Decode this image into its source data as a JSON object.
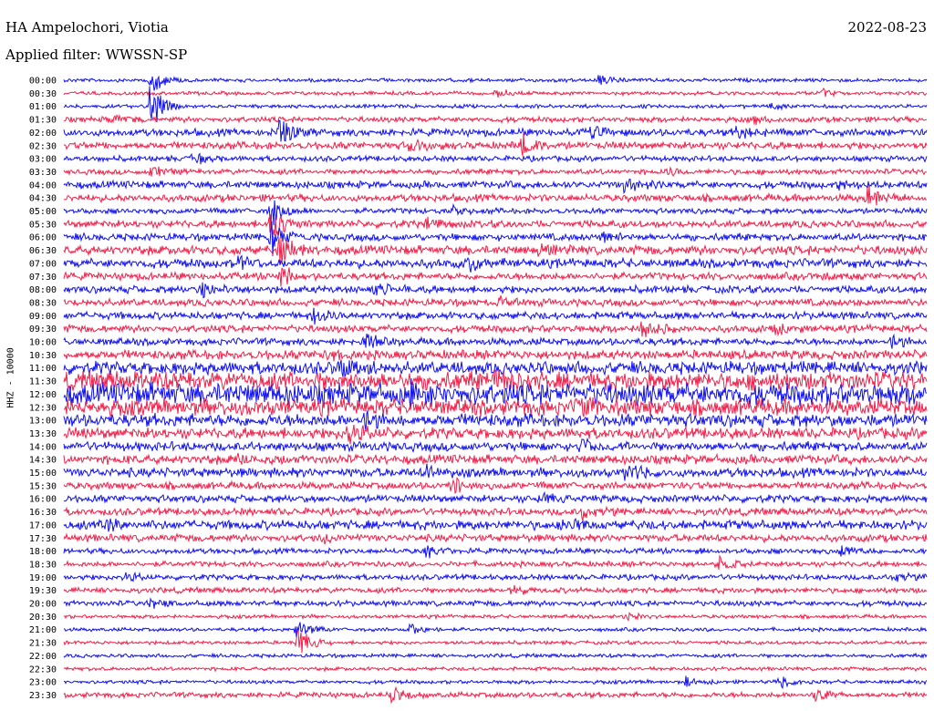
{
  "header": {
    "station": "HA Ampelochori, Viotia",
    "filter": "Applied filter: WWSSN-SP",
    "date": "2022-08-23"
  },
  "colors": {
    "even_trace": "#1010f0",
    "odd_trace": "#f0204a",
    "background": "#ffffff"
  },
  "chart_data": {
    "type": "line",
    "title": "",
    "ylabel": "HHZ - 10000",
    "trace_interval_minutes": 30,
    "grid": false,
    "rows": [
      {
        "label": "00:00",
        "amplitude": 2,
        "events": [
          {
            "at": 0.1,
            "size": 18
          },
          {
            "at": 0.62,
            "size": 8
          }
        ]
      },
      {
        "label": "00:30",
        "amplitude": 2,
        "events": [
          {
            "at": 0.5,
            "size": 7
          },
          {
            "at": 0.88,
            "size": 5
          }
        ]
      },
      {
        "label": "01:00",
        "amplitude": 2,
        "events": [
          {
            "at": 0.1,
            "size": 30
          },
          {
            "at": 0.82,
            "size": 5
          }
        ]
      },
      {
        "label": "01:30",
        "amplitude": 3,
        "events": [
          {
            "at": 0.05,
            "size": 6
          },
          {
            "at": 0.8,
            "size": 5
          }
        ]
      },
      {
        "label": "02:00",
        "amplitude": 4,
        "events": [
          {
            "at": 0.25,
            "size": 22
          },
          {
            "at": 0.61,
            "size": 8
          },
          {
            "at": 0.78,
            "size": 6
          }
        ]
      },
      {
        "label": "02:30",
        "amplitude": 4,
        "events": [
          {
            "at": 0.53,
            "size": 14
          },
          {
            "at": 0.4,
            "size": 8
          }
        ]
      },
      {
        "label": "03:00",
        "amplitude": 3,
        "events": [
          {
            "at": 0.15,
            "size": 6
          }
        ]
      },
      {
        "label": "03:30",
        "amplitude": 3,
        "events": [
          {
            "at": 0.1,
            "size": 7
          },
          {
            "at": 0.7,
            "size": 5
          }
        ]
      },
      {
        "label": "04:00",
        "amplitude": 4,
        "events": [
          {
            "at": 0.65,
            "size": 10
          },
          {
            "at": 0.9,
            "size": 6
          }
        ]
      },
      {
        "label": "04:30",
        "amplitude": 4,
        "events": [
          {
            "at": 0.93,
            "size": 14
          }
        ]
      },
      {
        "label": "05:00",
        "amplitude": 3,
        "events": [
          {
            "at": 0.24,
            "size": 20
          },
          {
            "at": 0.45,
            "size": 5
          }
        ]
      },
      {
        "label": "05:30",
        "amplitude": 4,
        "events": [
          {
            "at": 0.24,
            "size": 26
          },
          {
            "at": 0.42,
            "size": 6
          }
        ]
      },
      {
        "label": "06:00",
        "amplitude": 4,
        "events": [
          {
            "at": 0.24,
            "size": 24
          },
          {
            "at": 0.62,
            "size": 6
          }
        ]
      },
      {
        "label": "06:30",
        "amplitude": 5,
        "events": [
          {
            "at": 0.25,
            "size": 22
          },
          {
            "at": 0.55,
            "size": 6
          }
        ]
      },
      {
        "label": "07:00",
        "amplitude": 5,
        "events": [
          {
            "at": 0.2,
            "size": 12
          },
          {
            "at": 0.47,
            "size": 8
          }
        ]
      },
      {
        "label": "07:30",
        "amplitude": 4,
        "events": [
          {
            "at": 0.25,
            "size": 16
          },
          {
            "at": 0.88,
            "size": 6
          }
        ]
      },
      {
        "label": "08:00",
        "amplitude": 4,
        "events": [
          {
            "at": 0.16,
            "size": 10
          },
          {
            "at": 0.36,
            "size": 8
          }
        ]
      },
      {
        "label": "08:30",
        "amplitude": 4,
        "events": [
          {
            "at": 0.5,
            "size": 6
          }
        ]
      },
      {
        "label": "09:00",
        "amplitude": 4,
        "events": [
          {
            "at": 0.29,
            "size": 12
          }
        ]
      },
      {
        "label": "09:30",
        "amplitude": 4,
        "events": [
          {
            "at": 0.67,
            "size": 14
          },
          {
            "at": 0.82,
            "size": 8
          }
        ]
      },
      {
        "label": "10:00",
        "amplitude": 4,
        "events": [
          {
            "at": 0.35,
            "size": 8
          },
          {
            "at": 0.96,
            "size": 8
          }
        ]
      },
      {
        "label": "10:30",
        "amplitude": 5,
        "events": [
          {
            "at": 0.3,
            "size": 8
          }
        ]
      },
      {
        "label": "11:00",
        "amplitude": 7,
        "events": [
          {
            "at": 0.32,
            "size": 10
          }
        ]
      },
      {
        "label": "11:30",
        "amplitude": 10,
        "events": [
          {
            "at": 0.5,
            "size": 10
          }
        ]
      },
      {
        "label": "12:00",
        "amplitude": 12,
        "events": [
          {
            "at": 0.4,
            "size": 10
          }
        ]
      },
      {
        "label": "12:30",
        "amplitude": 9,
        "events": [
          {
            "at": 0.6,
            "size": 10
          }
        ]
      },
      {
        "label": "13:00",
        "amplitude": 7,
        "events": [
          {
            "at": 0.35,
            "size": 10
          }
        ]
      },
      {
        "label": "13:30",
        "amplitude": 6,
        "events": [
          {
            "at": 0.33,
            "size": 14
          }
        ]
      },
      {
        "label": "14:00",
        "amplitude": 5,
        "events": [
          {
            "at": 0.6,
            "size": 8
          }
        ]
      },
      {
        "label": "14:30",
        "amplitude": 5,
        "events": [
          {
            "at": 0.2,
            "size": 6
          }
        ]
      },
      {
        "label": "15:00",
        "amplitude": 5,
        "events": [
          {
            "at": 0.65,
            "size": 14
          },
          {
            "at": 0.42,
            "size": 8
          }
        ]
      },
      {
        "label": "15:30",
        "amplitude": 4,
        "events": [
          {
            "at": 0.45,
            "size": 12
          }
        ]
      },
      {
        "label": "16:00",
        "amplitude": 4,
        "events": [
          {
            "at": 0.55,
            "size": 6
          }
        ]
      },
      {
        "label": "16:30",
        "amplitude": 4,
        "events": [
          {
            "at": 0.6,
            "size": 8
          }
        ]
      },
      {
        "label": "17:00",
        "amplitude": 5,
        "events": [
          {
            "at": 0.05,
            "size": 8
          },
          {
            "at": 0.58,
            "size": 8
          }
        ]
      },
      {
        "label": "17:30",
        "amplitude": 4,
        "events": [
          {
            "at": 0.3,
            "size": 6
          }
        ]
      },
      {
        "label": "18:00",
        "amplitude": 3,
        "events": [
          {
            "at": 0.42,
            "size": 8
          },
          {
            "at": 0.9,
            "size": 6
          }
        ]
      },
      {
        "label": "18:30",
        "amplitude": 3,
        "events": [
          {
            "at": 0.76,
            "size": 8
          }
        ]
      },
      {
        "label": "19:00",
        "amplitude": 3,
        "events": [
          {
            "at": 0.07,
            "size": 6
          },
          {
            "at": 0.96,
            "size": 6
          }
        ]
      },
      {
        "label": "19:30",
        "amplitude": 3,
        "events": [
          {
            "at": 0.52,
            "size": 6
          }
        ]
      },
      {
        "label": "20:00",
        "amplitude": 3,
        "events": [
          {
            "at": 0.1,
            "size": 6
          }
        ]
      },
      {
        "label": "20:30",
        "amplitude": 2,
        "events": [
          {
            "at": 0.65,
            "size": 6
          }
        ]
      },
      {
        "label": "21:00",
        "amplitude": 2,
        "events": [
          {
            "at": 0.27,
            "size": 14
          },
          {
            "at": 0.4,
            "size": 8
          }
        ]
      },
      {
        "label": "21:30",
        "amplitude": 2,
        "events": [
          {
            "at": 0.27,
            "size": 22
          }
        ]
      },
      {
        "label": "22:00",
        "amplitude": 2,
        "events": []
      },
      {
        "label": "22:30",
        "amplitude": 2,
        "events": []
      },
      {
        "label": "23:00",
        "amplitude": 2,
        "events": [
          {
            "at": 0.72,
            "size": 6
          },
          {
            "at": 0.83,
            "size": 8
          }
        ]
      },
      {
        "label": "23:30",
        "amplitude": 3,
        "events": [
          {
            "at": 0.38,
            "size": 10
          },
          {
            "at": 0.87,
            "size": 10
          }
        ]
      }
    ]
  }
}
